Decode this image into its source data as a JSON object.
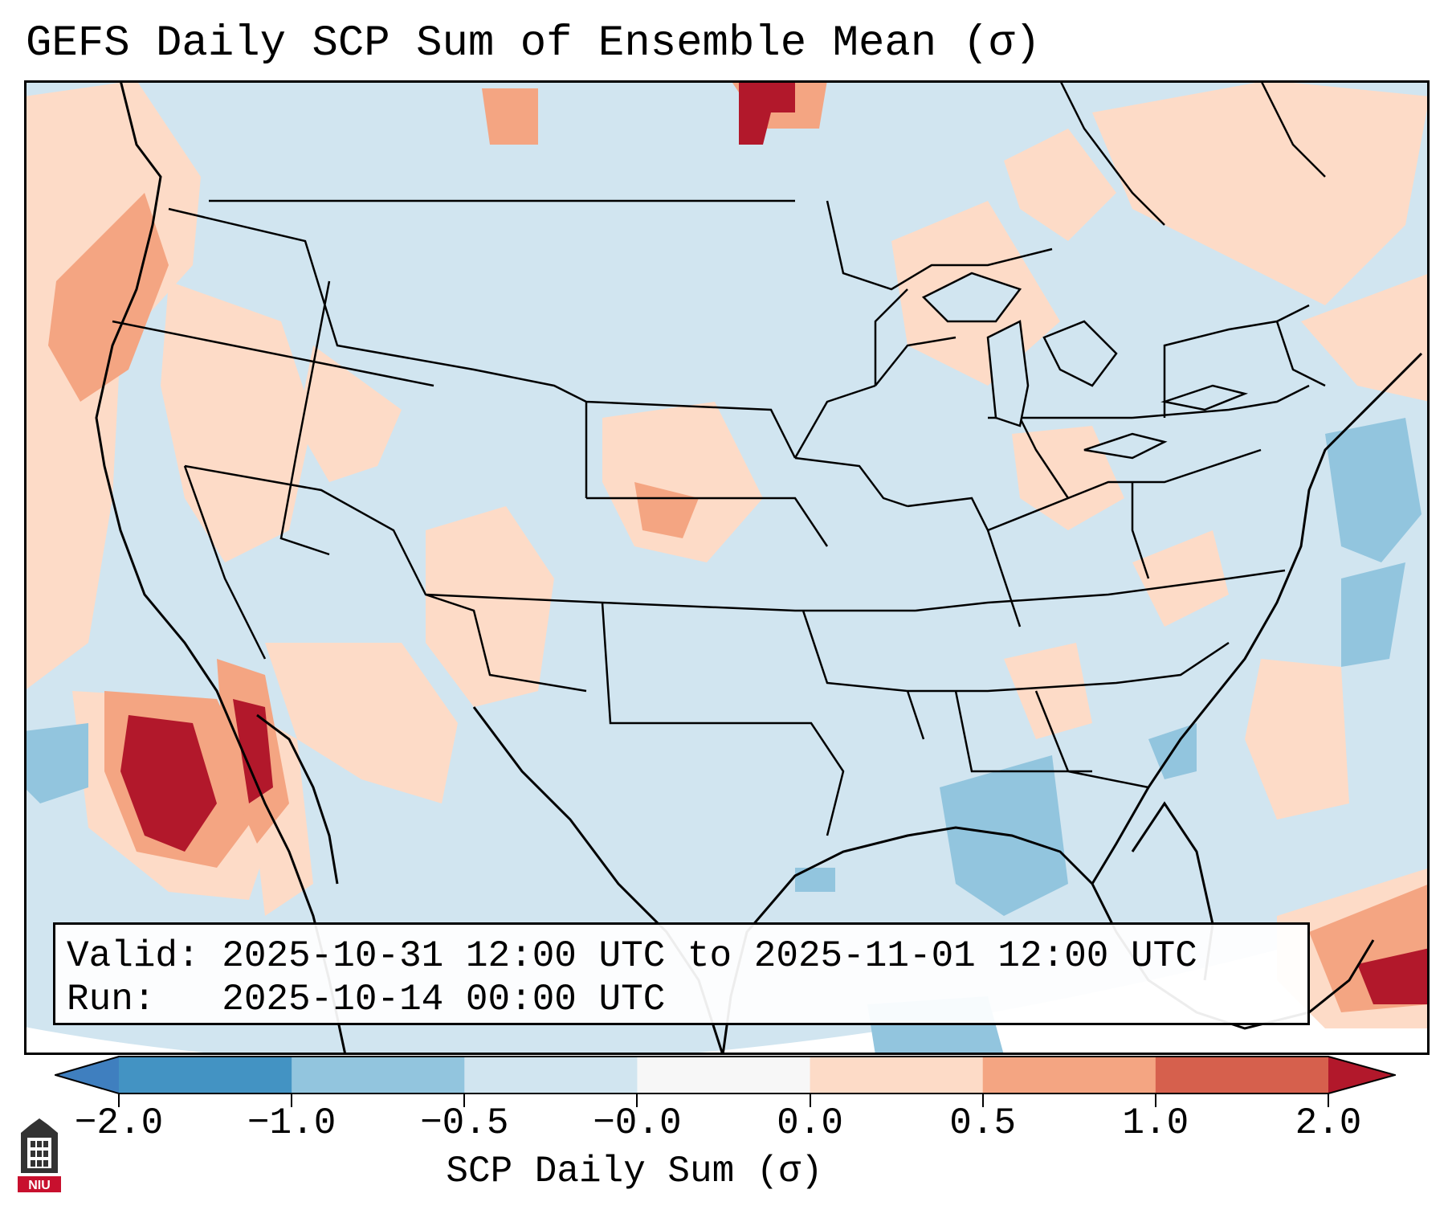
{
  "title": "GEFS Daily SCP Sum of Ensemble Mean (σ)",
  "info": {
    "valid_line": "Valid: 2025-10-31 12:00 UTC to 2025-11-01 12:00 UTC",
    "run_line": "Run:   2025-10-14 00:00 UTC"
  },
  "colorbar": {
    "label": "SCP Daily Sum (σ)",
    "ticks": [
      "−2.0",
      "−1.0",
      "−0.5",
      "−0.0",
      "0.0",
      "0.5",
      "1.0",
      "2.0"
    ],
    "bins": [
      {
        "from": "-inf",
        "to": -2.0,
        "color": "#3f7fbf"
      },
      {
        "from": -2.0,
        "to": -1.0,
        "color": "#4393c3"
      },
      {
        "from": -1.0,
        "to": -0.5,
        "color": "#92c5de"
      },
      {
        "from": -0.5,
        "to": -0.0,
        "color": "#d1e5f0"
      },
      {
        "from": -0.0,
        "to": 0.0,
        "color": "#f7f7f7"
      },
      {
        "from": 0.0,
        "to": 0.5,
        "color": "#fddbc7"
      },
      {
        "from": 0.5,
        "to": 1.0,
        "color": "#f4a582"
      },
      {
        "from": 1.0,
        "to": 2.0,
        "color": "#d6604d"
      },
      {
        "from": 2.0,
        "to": "inf",
        "color": "#b2182b"
      }
    ]
  },
  "map": {
    "ocean_color": "#d1e5f0",
    "border_color": "#000000",
    "region": "CONUS"
  },
  "logo": {
    "text": "NIU"
  }
}
